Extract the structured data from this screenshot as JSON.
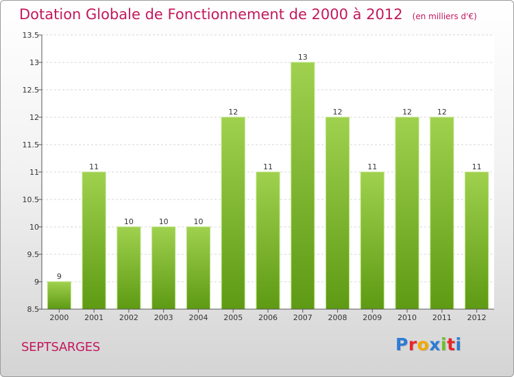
{
  "title": "Dotation Globale de Fonctionnement de 2000 à 2012",
  "subtitle": "(en milliers d'€)",
  "commune": "SEPTSARGES",
  "logo": {
    "text": "Proxiti",
    "colors": [
      "#2b7bd6",
      "#e8262b",
      "#f2a900",
      "#2b7bd6",
      "#6abf2e",
      "#e8262b",
      "#2b7bd6"
    ]
  },
  "chart_data": {
    "type": "bar",
    "categories": [
      "2000",
      "2001",
      "2002",
      "2003",
      "2004",
      "2005",
      "2006",
      "2007",
      "2008",
      "2009",
      "2010",
      "2011",
      "2012"
    ],
    "values": [
      9,
      11,
      10,
      10,
      10,
      12,
      11,
      13,
      12,
      11,
      12,
      12,
      11
    ],
    "data_labels": [
      "9",
      "11",
      "10",
      "10",
      "10",
      "12",
      "11",
      "13",
      "12",
      "11",
      "12",
      "12",
      "11"
    ],
    "ylim": [
      8.5,
      13.5
    ],
    "yticks": [
      8.5,
      9,
      9.5,
      10,
      10.5,
      11,
      11.5,
      12,
      12.5,
      13,
      13.5
    ],
    "ytick_labels": [
      "8.5",
      "9",
      "9.5",
      "10",
      "10.5",
      "11",
      "11.5",
      "12",
      "12.5",
      "13",
      "13.5"
    ],
    "grid": true,
    "bar_color": "#7ab82e"
  }
}
